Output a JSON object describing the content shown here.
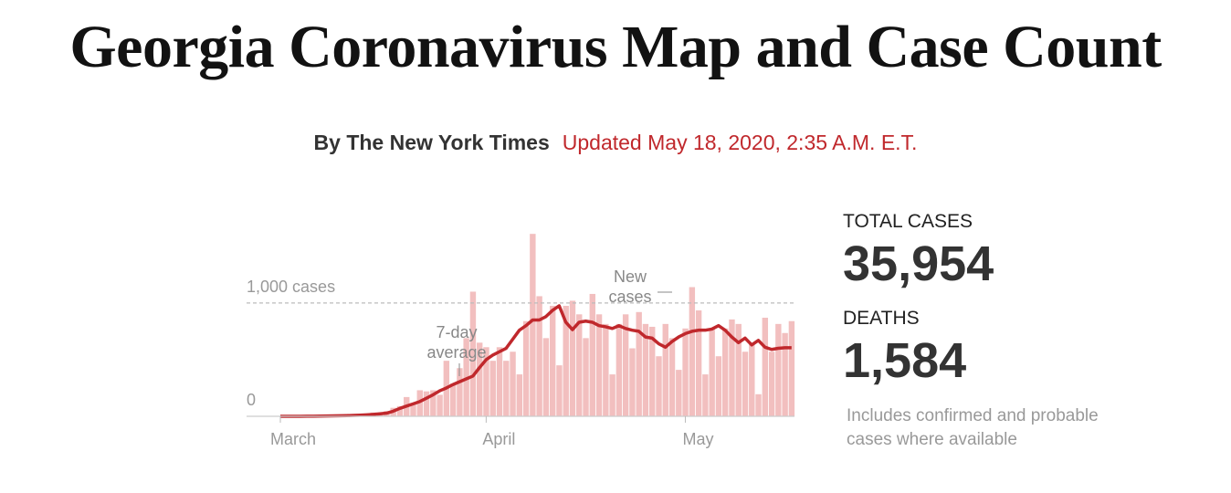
{
  "header": {
    "title": "Georgia Coronavirus Map and Case Count",
    "byline": "By The New York Times",
    "updated": "Updated May 18, 2020, 2:35 A.M. E.T."
  },
  "chart_data": {
    "type": "bar",
    "categories": [
      "March",
      null,
      null,
      null,
      null,
      null,
      null,
      null,
      null,
      null,
      null,
      null,
      null,
      null,
      null,
      null,
      null,
      null,
      null,
      null,
      null,
      null,
      null,
      null,
      null,
      null,
      null,
      null,
      null,
      null,
      null,
      "April",
      null,
      null,
      null,
      null,
      null,
      null,
      null,
      null,
      null,
      null,
      null,
      null,
      null,
      null,
      null,
      null,
      null,
      null,
      null,
      null,
      null,
      null,
      null,
      null,
      null,
      null,
      null,
      null,
      null,
      "May",
      null,
      null,
      null,
      null,
      null,
      null,
      null,
      null,
      null,
      null,
      null,
      null,
      null,
      null,
      null,
      null
    ],
    "series": [
      {
        "name": "New cases",
        "type": "bar",
        "color": "#f2bfbf",
        "values": [
          0,
          0,
          2,
          0,
          1,
          3,
          2,
          4,
          5,
          5,
          7,
          11,
          16,
          24,
          33,
          28,
          46,
          75,
          90,
          170,
          110,
          230,
          220,
          230,
          190,
          490,
          290,
          425,
          690,
          1100,
          650,
          610,
          490,
          610,
          490,
          570,
          370,
          840,
          1610,
          1060,
          690,
          975,
          450,
          975,
          1020,
          900,
          690,
          1080,
          900,
          815,
          370,
          815,
          900,
          600,
          920,
          815,
          790,
          530,
          815,
          690,
          410,
          775,
          1140,
          935,
          370,
          775,
          530,
          775,
          855,
          815,
          570,
          650,
          195,
          870,
          570,
          815,
          735,
          840
        ]
      },
      {
        "name": "7-day average",
        "type": "line",
        "color": "#c0282c",
        "values": [
          0,
          0,
          0,
          0,
          1,
          1,
          2,
          3,
          4,
          5,
          6,
          8,
          10,
          13,
          17,
          22,
          28,
          45,
          70,
          90,
          110,
          130,
          160,
          190,
          225,
          250,
          280,
          305,
          330,
          355,
          430,
          500,
          540,
          570,
          600,
          680,
          760,
          800,
          850,
          850,
          880,
          935,
          975,
          830,
          765,
          830,
          840,
          830,
          800,
          790,
          775,
          800,
          775,
          760,
          750,
          700,
          690,
          640,
          610,
          660,
          700,
          730,
          750,
          760,
          760,
          770,
          800,
          760,
          700,
          650,
          690,
          630,
          670,
          610,
          590,
          600,
          605,
          605
        ]
      }
    ],
    "ylim": [
      0,
      1700
    ],
    "yticks": [
      0,
      {
        "value": 1000,
        "label": "1,000 cases"
      }
    ],
    "grid": true
  },
  "stats": [
    {
      "label": "TOTAL CASES",
      "value": "35,954"
    },
    {
      "label": "DEATHS",
      "value": "1,584"
    }
  ],
  "note": "Includes confirmed and probable cases where available"
}
